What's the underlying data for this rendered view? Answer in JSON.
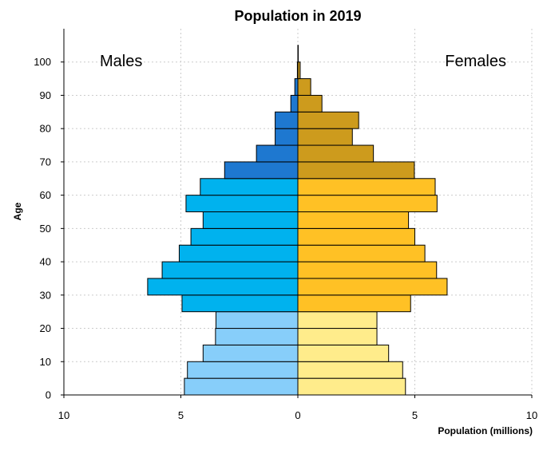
{
  "chart_data": {
    "type": "bar",
    "orientation": "horizontal",
    "title": "Population in 2019",
    "xlabel": "Population (millions)",
    "ylabel": "Age",
    "xlim": [
      -10,
      10
    ],
    "ylim": [
      0,
      110
    ],
    "x_ticks": [
      -10,
      -5,
      0,
      5,
      10
    ],
    "x_tick_labels": [
      "10",
      "5",
      "0",
      "5",
      "10"
    ],
    "y_ticks": [
      0,
      10,
      20,
      30,
      40,
      50,
      60,
      70,
      80,
      90,
      100
    ],
    "y_tick_labels": [
      "0",
      "10",
      "20",
      "30",
      "40",
      "50",
      "60",
      "70",
      "80",
      "90",
      "100"
    ],
    "grid": true,
    "age_group_starts": [
      0,
      5,
      10,
      15,
      20,
      25,
      30,
      35,
      40,
      45,
      50,
      55,
      60,
      65,
      70,
      75,
      80,
      85,
      90,
      95,
      100
    ],
    "age_group_width": 5,
    "annotations": {
      "left": "Males",
      "right": "Females"
    },
    "series": [
      {
        "name": "Males",
        "values": [
          4.85,
          4.72,
          4.05,
          3.52,
          3.5,
          4.95,
          6.42,
          5.8,
          5.07,
          4.57,
          4.05,
          4.78,
          4.17,
          3.13,
          1.77,
          0.97,
          0.97,
          0.3,
          0.13,
          0.02,
          0.0
        ]
      },
      {
        "name": "Females",
        "values": [
          4.6,
          4.48,
          3.88,
          3.38,
          3.38,
          4.82,
          6.38,
          5.93,
          5.43,
          5.0,
          4.73,
          5.95,
          5.87,
          4.98,
          3.23,
          2.33,
          2.6,
          1.03,
          0.55,
          0.1,
          0.01
        ]
      }
    ],
    "color_bands": {
      "Males": [
        {
          "from": 0,
          "to": 25,
          "color": "#87CEFA"
        },
        {
          "from": 25,
          "to": 65,
          "color": "#00B2EE"
        },
        {
          "from": 65,
          "to": 105,
          "color": "#1E78D0"
        }
      ],
      "Females": [
        {
          "from": 0,
          "to": 25,
          "color": "#FFEC8B"
        },
        {
          "from": 25,
          "to": 65,
          "color": "#FFC125"
        },
        {
          "from": 65,
          "to": 105,
          "color": "#CD9B1D"
        }
      ]
    }
  }
}
